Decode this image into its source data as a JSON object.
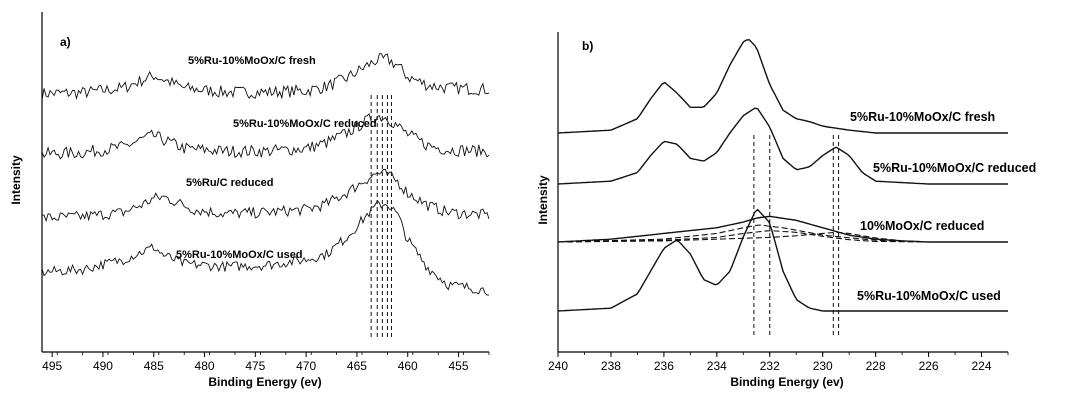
{
  "chart_data": [
    {
      "panel": "a)",
      "type": "line",
      "xlabel": "Binding Energy (ev)",
      "ylabel": "Intensity",
      "xlim": [
        496,
        452
      ],
      "x_reversed": true,
      "xticks": [
        495,
        490,
        485,
        480,
        475,
        470,
        465,
        460,
        455
      ],
      "series": [
        {
          "name": "5%Ru-10%MoOx/C used",
          "offset": 3,
          "noise": 0.22,
          "x": [
            496,
            492,
            488,
            486,
            485,
            484,
            482,
            478,
            474,
            470,
            468,
            466,
            464,
            463,
            462,
            461,
            460,
            458,
            456,
            452
          ],
          "y": [
            0.05,
            0.08,
            0.25,
            0.55,
            0.7,
            0.55,
            0.25,
            0.1,
            0.1,
            0.15,
            0.3,
            0.6,
            1.05,
            1.25,
            1.28,
            1.05,
            0.65,
            0.35,
            0.25,
            0.2
          ]
        },
        {
          "name": "5%Ru/C reduced",
          "offset": 2,
          "noise": 0.22,
          "x": [
            496,
            492,
            488,
            486,
            485,
            484,
            482,
            478,
            474,
            470,
            468,
            466,
            464,
            463,
            462,
            461,
            460,
            458,
            456,
            452
          ],
          "y": [
            0.0,
            0.05,
            0.25,
            0.55,
            0.65,
            0.5,
            0.2,
            0.1,
            0.1,
            0.2,
            0.4,
            0.75,
            1.2,
            1.35,
            1.3,
            1.0,
            0.7,
            0.3,
            0.15,
            0.1
          ]
        },
        {
          "name": "5%Ru-10%MoOx/C reduced",
          "offset": 1,
          "noise": 0.2,
          "x": [
            496,
            492,
            488,
            486,
            485,
            484,
            483,
            481,
            478,
            474,
            470,
            468,
            466,
            464,
            463,
            462,
            461,
            460,
            458,
            456,
            452
          ],
          "y": [
            0.0,
            0.05,
            0.2,
            0.5,
            0.7,
            0.75,
            0.6,
            0.3,
            0.15,
            0.2,
            0.3,
            0.5,
            0.9,
            1.4,
            1.6,
            1.55,
            1.3,
            0.9,
            0.45,
            0.2,
            0.1
          ]
        },
        {
          "name": "5%Ru-10%MoOx/C fresh",
          "offset": 0,
          "noise": 0.18,
          "x": [
            496,
            492,
            488,
            486,
            485,
            484,
            482,
            478,
            474,
            470,
            468,
            466,
            464,
            463,
            462,
            461,
            460,
            458,
            456,
            452
          ],
          "y": [
            0.35,
            0.45,
            0.8,
            1.1,
            1.25,
            0.95,
            0.65,
            0.55,
            0.6,
            0.8,
            1.0,
            1.6,
            2.4,
            2.75,
            2.8,
            2.4,
            1.5,
            0.5,
            -0.1,
            -0.3
          ]
        }
      ],
      "reference_lines_x": [
        463.6,
        463.0,
        462.5,
        462.0,
        461.6
      ]
    },
    {
      "panel": "b)",
      "type": "line",
      "xlabel": "Binding Energy (ev)",
      "ylabel": "Intensity",
      "xlim": [
        240,
        223
      ],
      "x_reversed": true,
      "xticks": [
        240,
        238,
        236,
        234,
        232,
        230,
        228,
        226,
        224
      ],
      "series": [
        {
          "name": "5%Ru-10%MoOx/C used",
          "offset": 3,
          "x": [
            240,
            238,
            237,
            236.5,
            236,
            235.5,
            235,
            234.5,
            234,
            233.5,
            233,
            232.8,
            232.5,
            232,
            231.5,
            231,
            230.5,
            230,
            229,
            228,
            226,
            224
          ],
          "y": [
            0.0,
            0.05,
            0.25,
            0.6,
            0.9,
            0.7,
            0.45,
            0.45,
            0.7,
            1.2,
            1.6,
            1.65,
            1.5,
            0.85,
            0.4,
            0.25,
            0.2,
            0.12,
            0.05,
            0.0,
            0.0,
            0.0
          ]
        },
        {
          "name": "10%MoOx/C  reduced",
          "offset": 2,
          "x": [
            240,
            238,
            237,
            236.5,
            236,
            235.5,
            235,
            234.5,
            234,
            233.5,
            233,
            232.5,
            232,
            231.5,
            231,
            230.5,
            230,
            229.5,
            229,
            228.5,
            228,
            226,
            224
          ],
          "y": [
            0.0,
            0.05,
            0.2,
            0.5,
            0.75,
            0.7,
            0.45,
            0.4,
            0.55,
            0.9,
            1.2,
            1.35,
            1.0,
            0.45,
            0.25,
            0.3,
            0.5,
            0.65,
            0.5,
            0.2,
            0.05,
            0.0,
            0.0
          ]
        },
        {
          "name": "5%Ru-10%MoOx/C reduced",
          "offset": 1,
          "x": [
            240,
            238,
            236,
            234,
            233,
            232.5,
            232,
            231,
            230,
            229,
            228,
            227,
            226,
            224
          ],
          "y": [
            0.0,
            0.05,
            0.15,
            0.25,
            0.35,
            0.42,
            0.45,
            0.38,
            0.25,
            0.12,
            0.05,
            0.02,
            0.0,
            0.0
          ]
        },
        {
          "name": "5%Ru-10%MoOx/C fresh",
          "offset": 0,
          "x": [
            240,
            238,
            237,
            236.5,
            236,
            235.5,
            235,
            234.5,
            234,
            233.5,
            233,
            232.5,
            232,
            231.5,
            231,
            230.5,
            230,
            228,
            226,
            224
          ],
          "y": [
            0.0,
            0.05,
            0.3,
            0.7,
            1.1,
            1.25,
            1.0,
            0.55,
            0.45,
            0.7,
            1.3,
            1.8,
            1.55,
            0.7,
            0.2,
            0.05,
            0.0,
            0.0,
            0.0,
            0.0
          ]
        }
      ],
      "deconvolution_components": [
        {
          "x": [
            240,
            236,
            234,
            233,
            232.4,
            231.5,
            230,
            228,
            226,
            224
          ],
          "y": [
            0,
            0.05,
            0.15,
            0.25,
            0.3,
            0.25,
            0.12,
            0.03,
            0,
            0
          ]
        },
        {
          "x": [
            240,
            236,
            234,
            233,
            232,
            231,
            230,
            229,
            228,
            226,
            224
          ],
          "y": [
            0,
            0.03,
            0.08,
            0.15,
            0.2,
            0.17,
            0.1,
            0.04,
            0.01,
            0,
            0
          ]
        },
        {
          "x": [
            240,
            236,
            234,
            232,
            231,
            230,
            229.5,
            229,
            228,
            227,
            226,
            224
          ],
          "y": [
            0,
            0.02,
            0.05,
            0.08,
            0.11,
            0.15,
            0.17,
            0.15,
            0.07,
            0.02,
            0,
            0
          ]
        }
      ],
      "reference_lines_x": [
        232.6,
        232.0,
        229.6,
        229.4
      ]
    }
  ]
}
